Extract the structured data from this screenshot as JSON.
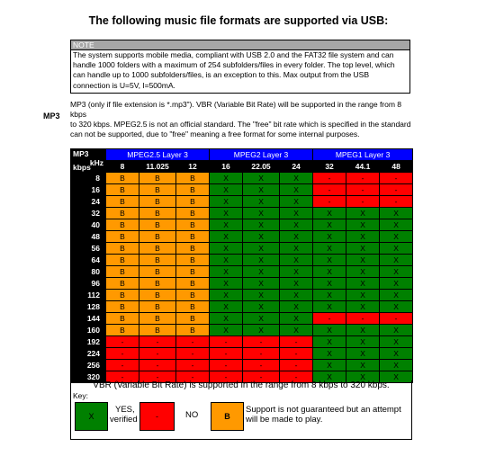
{
  "title": "The following music file formats are supported via USB:",
  "note": {
    "heading": "NOTE",
    "lines": [
      "The system supports mobile media, compliant with USB 2.0 and the FAT32 file system and can",
      "handle 1000 folders with a maximum of 254 subfolders/files in every folder. The top level, which",
      "can handle up to 1000 subfolders/files, is an exception to this. Max output from the USB",
      "connection is U=5V, I=500mA."
    ]
  },
  "mp3": {
    "label": "MP3",
    "description_lines": [
      "MP3 (only if file extension is *.mp3\"). VBR (Variable Bit Rate) will be supported in the range from 8 kbps",
      "to 320 kbps. MPEG2.5 is not an official standard. The \"free\" bit rate which is specified in the standard",
      "can not be supported, due to \"free\" meaning a free format for some internal purposes."
    ]
  },
  "table": {
    "corner_mp3": "MP3",
    "corner_khz": "kHz",
    "corner_kbps": "kbps",
    "groups": [
      "MPEG2.5 Layer 3",
      "MPEG2 Layer 3",
      "MPEG1 Layer 3"
    ],
    "frequencies": [
      "8",
      "11.025",
      "12",
      "16",
      "22.05",
      "24",
      "32",
      "44.1",
      "48"
    ],
    "rows": [
      {
        "kbps": "8",
        "cells": [
          "B",
          "B",
          "B",
          "X",
          "X",
          "X",
          "-",
          "-",
          "-"
        ]
      },
      {
        "kbps": "16",
        "cells": [
          "B",
          "B",
          "B",
          "X",
          "X",
          "X",
          "-",
          "-",
          "-"
        ]
      },
      {
        "kbps": "24",
        "cells": [
          "B",
          "B",
          "B",
          "X",
          "X",
          "X",
          "-",
          "-",
          "-"
        ]
      },
      {
        "kbps": "32",
        "cells": [
          "B",
          "B",
          "B",
          "X",
          "X",
          "X",
          "X",
          "X",
          "X"
        ]
      },
      {
        "kbps": "40",
        "cells": [
          "B",
          "B",
          "B",
          "X",
          "X",
          "X",
          "X",
          "X",
          "X"
        ]
      },
      {
        "kbps": "48",
        "cells": [
          "B",
          "B",
          "B",
          "X",
          "X",
          "X",
          "X",
          "X",
          "X"
        ]
      },
      {
        "kbps": "56",
        "cells": [
          "B",
          "B",
          "B",
          "X",
          "X",
          "X",
          "X",
          "X",
          "X"
        ]
      },
      {
        "kbps": "64",
        "cells": [
          "B",
          "B",
          "B",
          "X",
          "X",
          "X",
          "X",
          "X",
          "X"
        ]
      },
      {
        "kbps": "80",
        "cells": [
          "B",
          "B",
          "B",
          "X",
          "X",
          "X",
          "X",
          "X",
          "X"
        ]
      },
      {
        "kbps": "96",
        "cells": [
          "B",
          "B",
          "B",
          "X",
          "X",
          "X",
          "X",
          "X",
          "X"
        ]
      },
      {
        "kbps": "112",
        "cells": [
          "B",
          "B",
          "B",
          "X",
          "X",
          "X",
          "X",
          "X",
          "X"
        ]
      },
      {
        "kbps": "128",
        "cells": [
          "B",
          "B",
          "B",
          "X",
          "X",
          "X",
          "X",
          "X",
          "X"
        ]
      },
      {
        "kbps": "144",
        "cells": [
          "B",
          "B",
          "B",
          "X",
          "X",
          "X",
          "-",
          "-",
          "-"
        ]
      },
      {
        "kbps": "160",
        "cells": [
          "B",
          "B",
          "B",
          "X",
          "X",
          "X",
          "X",
          "X",
          "X"
        ]
      },
      {
        "kbps": "192",
        "cells": [
          "-",
          "-",
          "-",
          "-",
          "-",
          "-",
          "X",
          "X",
          "X"
        ]
      },
      {
        "kbps": "224",
        "cells": [
          "-",
          "-",
          "-",
          "-",
          "-",
          "-",
          "X",
          "X",
          "X"
        ]
      },
      {
        "kbps": "256",
        "cells": [
          "-",
          "-",
          "-",
          "-",
          "-",
          "-",
          "X",
          "X",
          "X"
        ]
      },
      {
        "kbps": "320",
        "cells": [
          "-",
          "-",
          "-",
          "-",
          "-",
          "-",
          "X",
          "X",
          "X"
        ]
      }
    ],
    "colors": {
      "B": "#ff9900",
      "X": "#008000",
      "-": "#ff0000",
      "header_blue": "#0000ff"
    }
  },
  "footer": {
    "vbr_note": "VBR (Variable Bit Rate) is supported in the range from 8 kbps to 320 kbps.",
    "key_label": "Key:",
    "legend": {
      "yes_symbol": "X",
      "yes_text_1": "YES,",
      "yes_text_2": "verified",
      "no_symbol": "-",
      "no_text": "NO",
      "b_symbol": "B",
      "b_text_1": "Support is not guaranteed but an attempt",
      "b_text_2": "will be made to play."
    }
  }
}
